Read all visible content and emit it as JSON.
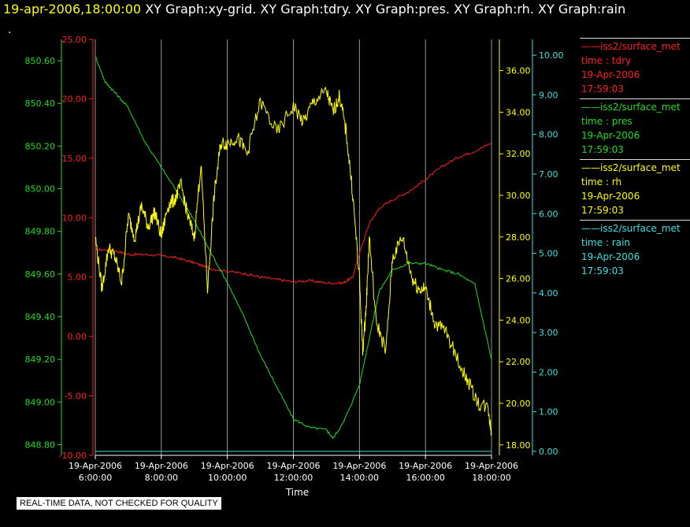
{
  "header": {
    "timestamp": "19-apr-2006,18:00:00",
    "title": "XY Graph:xy-grid.  XY Graph:tdry.  XY Graph:pres.  XY Graph:rh.  XY Graph:rain",
    "subtext": "."
  },
  "disclaimer": "REAL-TIME DATA, NOT CHECKED FOR QUALITY",
  "legend": [
    {
      "name": "iss2/surface_met",
      "var": "time : tdry",
      "date": "19-Apr-2006",
      "time": "17:59:03",
      "color": "#ff2020"
    },
    {
      "name": "iss2/surface_met",
      "var": "time : pres",
      "date": "19-Apr-2006",
      "time": "17:59:03",
      "color": "#22dd22"
    },
    {
      "name": "iss2/surface_met",
      "var": "time : rh",
      "date": "19-Apr-2006",
      "time": "17:59:03",
      "color": "#ffff00"
    },
    {
      "name": "iss2/surface_met",
      "var": "time : rain",
      "date": "19-Apr-2006",
      "time": "17:59:03",
      "color": "#40e0e0"
    }
  ],
  "chart_data": {
    "type": "line",
    "xlabel": "Time",
    "x_ticks": [
      {
        "l1": "19-Apr-2006",
        "l2": "6:00:00"
      },
      {
        "l1": "19-Apr-2006",
        "l2": "8:00:00"
      },
      {
        "l1": "19-Apr-2006",
        "l2": "10:00:00"
      },
      {
        "l1": "19-Apr-2006",
        "l2": "12:00:00"
      },
      {
        "l1": "19-Apr-2006",
        "l2": "14:00:00"
      },
      {
        "l1": "19-Apr-2006",
        "l2": "16:00:00"
      },
      {
        "l1": "19-Apr-2006",
        "l2": "18:00:00"
      }
    ],
    "xlim_hours": [
      6,
      18
    ],
    "grid": true,
    "axes": [
      {
        "id": "pres",
        "color": "#22dd22",
        "ylim": [
          848.75,
          850.7
        ],
        "ticks": [
          "848.80",
          "849.00",
          "849.20",
          "849.40",
          "849.60",
          "849.80",
          "850.00",
          "850.20",
          "850.40",
          "850.60"
        ]
      },
      {
        "id": "tdry",
        "color": "#ff2020",
        "ylim": [
          -10,
          25
        ],
        "ticks": [
          "-10.00",
          "-5.00",
          "0.00",
          "5.00",
          "10.00",
          "15.00",
          "20.00",
          "25.00"
        ]
      },
      {
        "id": "rh",
        "color": "#ffff00",
        "ylim": [
          17.5,
          37.5
        ],
        "ticks": [
          "18.00",
          "20.00",
          "22.00",
          "24.00",
          "26.00",
          "28.00",
          "30.00",
          "32.00",
          "34.00",
          "36.00"
        ]
      },
      {
        "id": "rain",
        "color": "#40e0e0",
        "ylim": [
          -0.1,
          10.4
        ],
        "ticks": [
          "0.00",
          "1.00",
          "2.00",
          "3.00",
          "4.00",
          "5.00",
          "6.00",
          "7.00",
          "8.00",
          "9.00",
          "10.00"
        ]
      }
    ],
    "series": [
      {
        "axis": "tdry",
        "color": "#ff2020",
        "x": [
          6,
          6.5,
          7,
          7.5,
          8,
          8.5,
          9,
          9.5,
          10,
          10.5,
          11,
          11.5,
          12,
          12.5,
          13,
          13.5,
          13.8,
          14,
          14.3,
          14.6,
          15,
          15.5,
          16,
          16.5,
          17,
          17.5,
          18
        ],
        "y": [
          7.3,
          7.3,
          6.9,
          6.9,
          6.8,
          6.6,
          6.2,
          5.7,
          5.5,
          5.3,
          5.0,
          4.8,
          4.6,
          4.7,
          4.5,
          4.5,
          5.0,
          7.0,
          9.5,
          10.8,
          11.5,
          12.2,
          13.2,
          14.3,
          15.1,
          15.6,
          16.3
        ]
      },
      {
        "axis": "pres",
        "color": "#22dd22",
        "x": [
          6,
          6.3,
          6.6,
          7,
          7.5,
          8,
          8.5,
          9,
          9.5,
          10,
          10.5,
          11,
          11.5,
          12,
          12.5,
          13,
          13.2,
          13.5,
          14,
          14.3,
          14.6,
          15,
          15.5,
          16,
          16.5,
          17,
          17.5,
          18
        ],
        "y": [
          850.62,
          850.5,
          850.45,
          850.38,
          850.22,
          850.1,
          849.98,
          849.85,
          849.7,
          849.56,
          849.4,
          849.22,
          849.07,
          848.92,
          848.88,
          848.87,
          848.83,
          848.9,
          849.08,
          849.3,
          849.52,
          849.62,
          849.65,
          849.65,
          849.62,
          849.6,
          849.55,
          849.2
        ]
      },
      {
        "axis": "rh",
        "color": "#ffff00",
        "x": [
          6,
          6.2,
          6.4,
          6.6,
          6.8,
          7,
          7.2,
          7.4,
          7.6,
          7.8,
          8,
          8.2,
          8.4,
          8.6,
          8.8,
          9,
          9.2,
          9.4,
          9.6,
          9.8,
          10,
          10.3,
          10.6,
          11,
          11.5,
          12,
          12.3,
          12.6,
          13,
          13.2,
          13.4,
          13.6,
          13.8,
          14,
          14.1,
          14.2,
          14.3,
          14.5,
          14.8,
          15,
          15.3,
          15.6,
          15.8,
          16,
          16.3,
          16.6,
          17,
          17.3,
          17.6,
          17.9,
          18
        ],
        "y": [
          28.0,
          25.5,
          27.5,
          27.0,
          25.8,
          29.0,
          28.0,
          29.5,
          28.5,
          29.2,
          28.0,
          29.5,
          29.8,
          30.5,
          29.0,
          28.0,
          31.5,
          25.5,
          30.0,
          32.5,
          32.5,
          32.8,
          32.0,
          34.5,
          33.0,
          34.3,
          33.5,
          34.5,
          35.0,
          34.0,
          34.8,
          33.0,
          30.0,
          26.0,
          22.5,
          24.5,
          28.0,
          24.0,
          22.5,
          27.0,
          28.0,
          26.0,
          25.5,
          25.5,
          23.8,
          23.5,
          22.0,
          21.0,
          20.0,
          19.8,
          18.5
        ]
      },
      {
        "axis": "rain",
        "color": "#40e0e0",
        "x": [
          6,
          18
        ],
        "y": [
          0,
          0
        ]
      }
    ]
  }
}
